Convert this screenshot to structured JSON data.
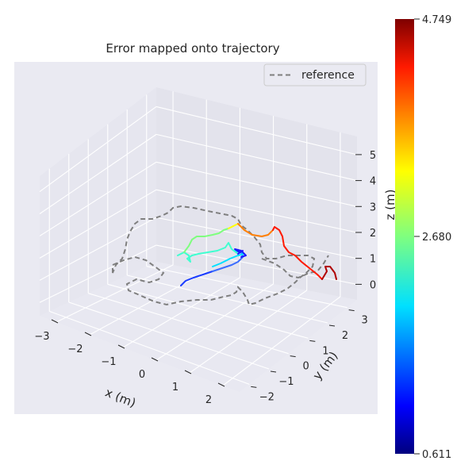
{
  "chart_data": {
    "type": "line",
    "title": "Error mapped onto trajectory",
    "xlabel": "x (m)",
    "ylabel": "y (m)",
    "zlabel": "z (m)",
    "x_ticks": [
      "−3",
      "−2",
      "−1",
      "0",
      "1",
      "2"
    ],
    "y_ticks": [
      "−2",
      "−1",
      "0",
      "1",
      "2",
      "3"
    ],
    "z_ticks": [
      "0",
      "1",
      "2",
      "3",
      "4",
      "5"
    ],
    "legend": {
      "entries": [
        "reference"
      ],
      "placement": "top-right"
    },
    "colorbar": {
      "labels": [
        "4.749",
        "2.680",
        "0.611"
      ],
      "min": 0.611,
      "mid": 2.68,
      "max": 4.749,
      "colormap": "jet"
    },
    "grid": true,
    "series": [
      {
        "name": "reference",
        "style": "dashed",
        "color": "#7f7f7f"
      }
    ],
    "colors": {
      "background": "#eaeaf2",
      "grid": "#ffffff",
      "reference": "#7f7f7f"
    }
  }
}
